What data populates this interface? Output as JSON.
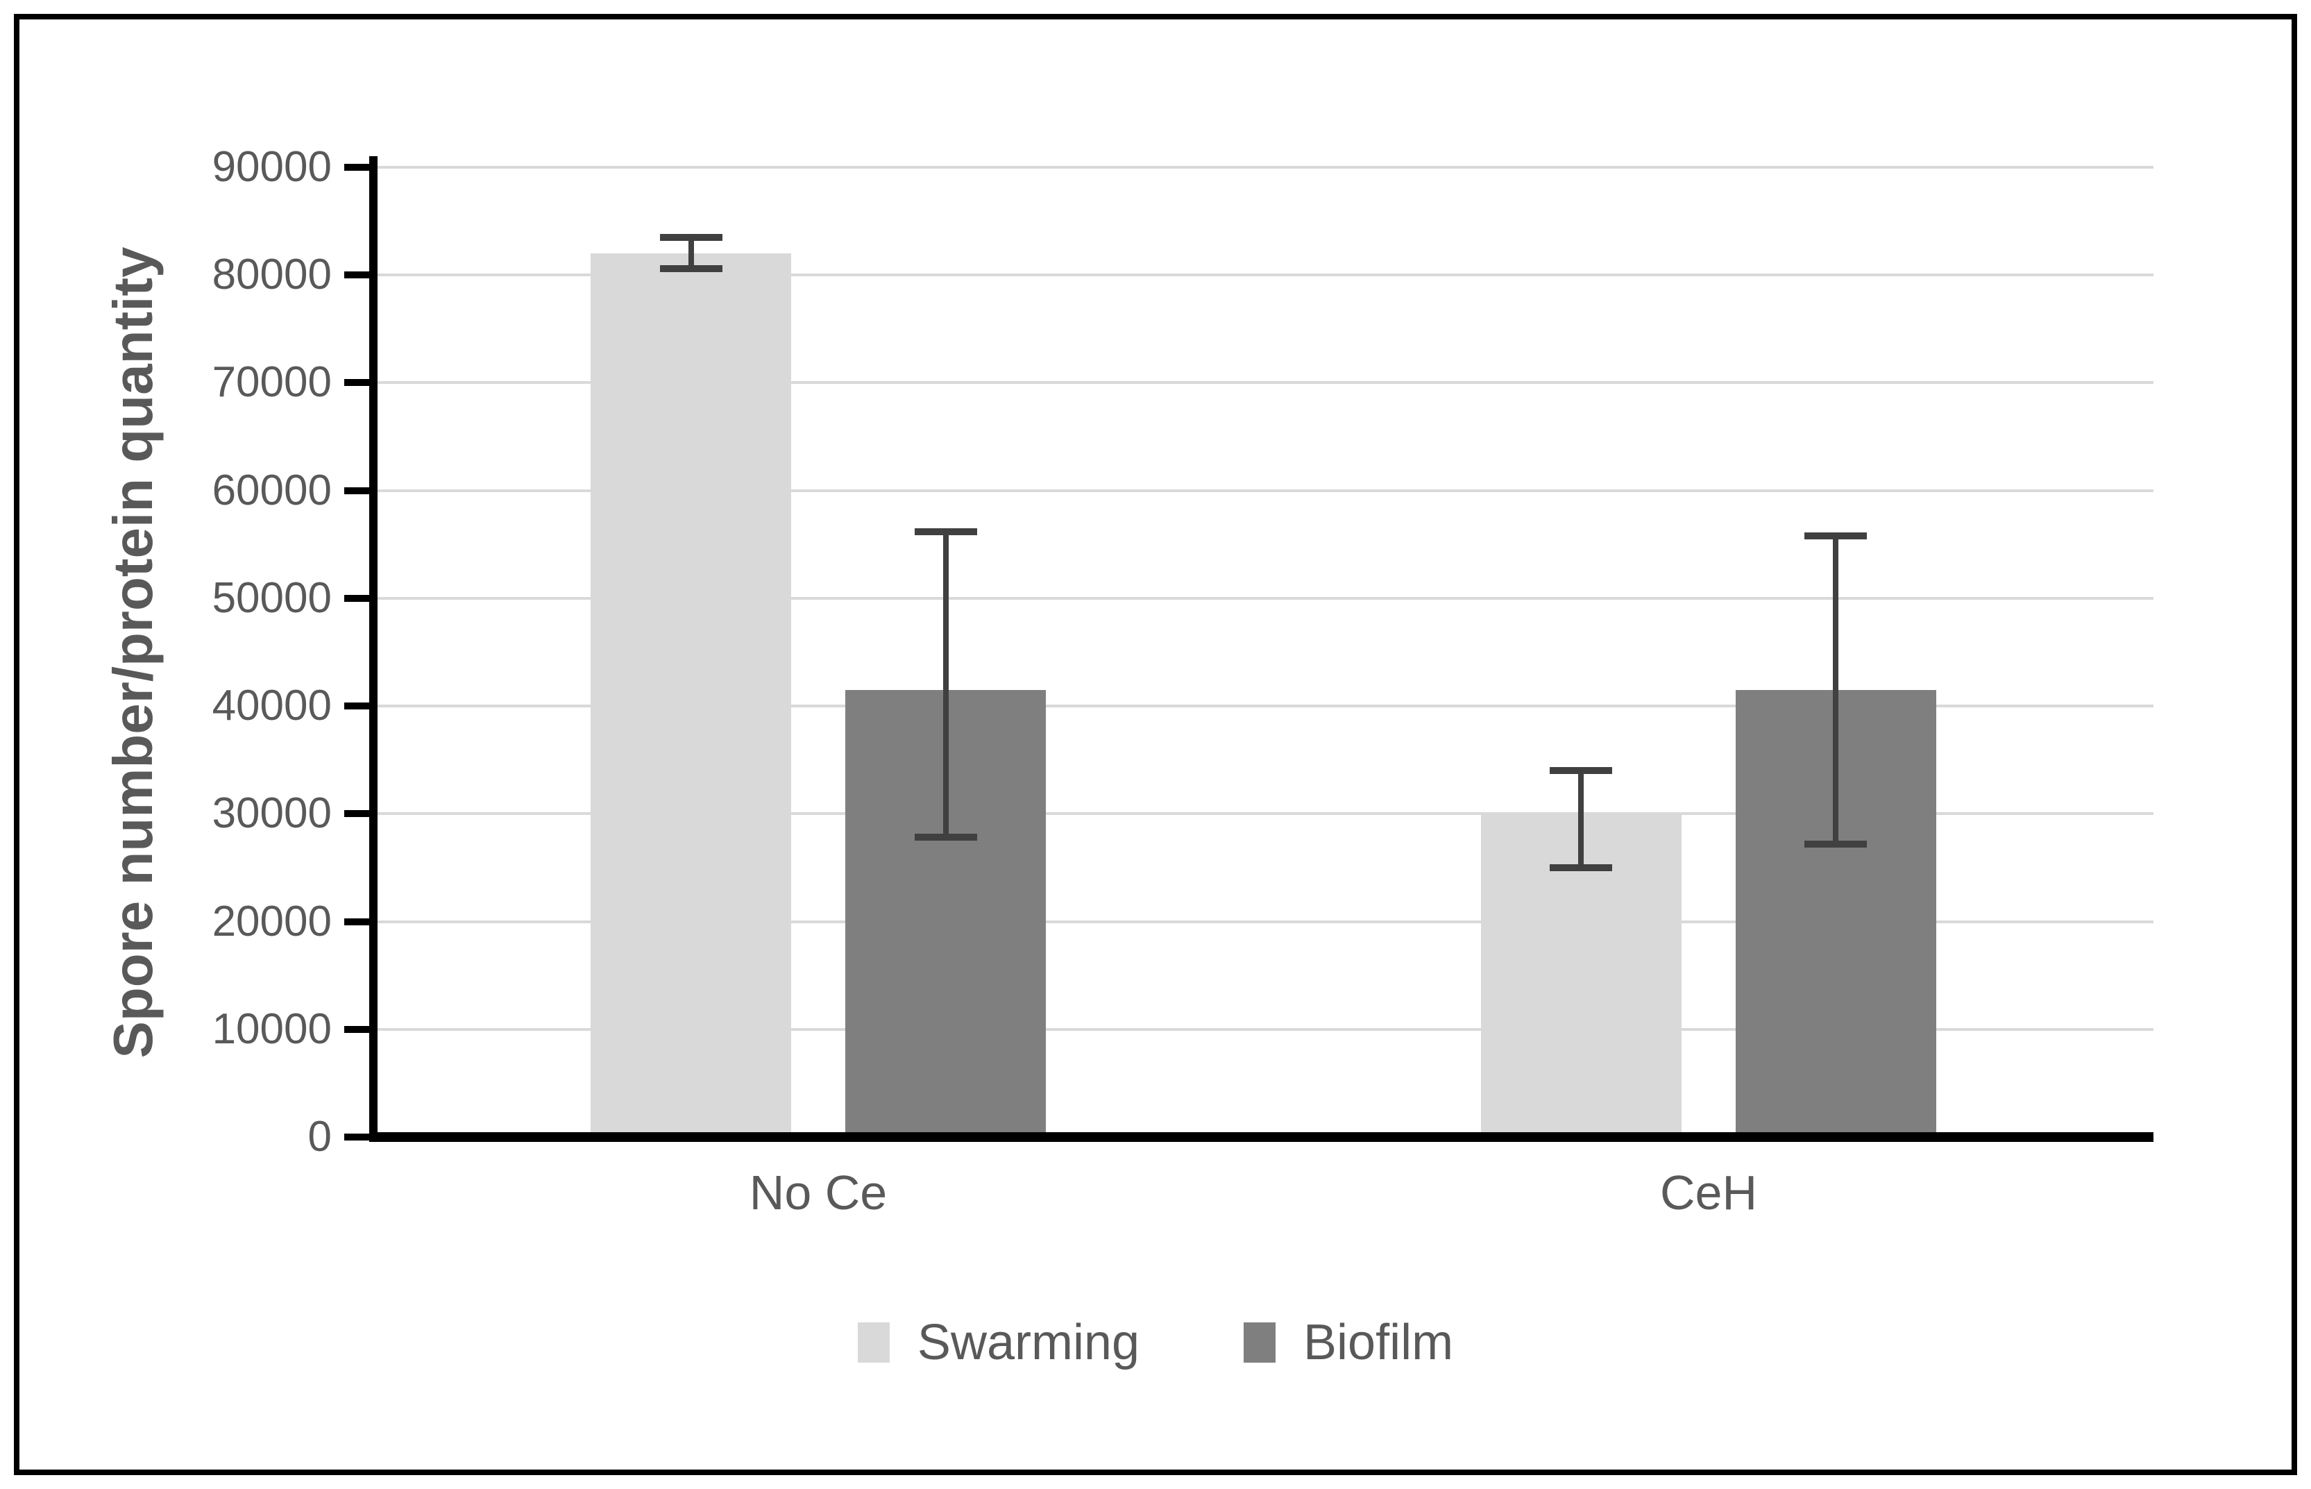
{
  "chart_data": {
    "type": "bar",
    "title": "",
    "xlabel": "",
    "ylabel": "Spore number/protein quantity",
    "categories": [
      "No Ce",
      "CeH"
    ],
    "series": [
      {
        "name": "Swarming",
        "color": "#D9D9D9",
        "values": [
          82000,
          30000
        ],
        "error_upper": [
          83500,
          34000
        ],
        "error_lower": [
          80600,
          25000
        ]
      },
      {
        "name": "Biofilm",
        "color": "#7F7F7F",
        "values": [
          41500,
          41500
        ],
        "error_upper": [
          56200,
          55800
        ],
        "error_lower": [
          27800,
          27200
        ]
      }
    ],
    "ylim": [
      0,
      90000
    ],
    "yticks": [
      0,
      10000,
      20000,
      30000,
      40000,
      50000,
      60000,
      70000,
      80000,
      90000
    ],
    "grid": "horizontal",
    "legend_position": "bottom",
    "colors": {
      "background": "#FFFFFF",
      "frame_border": "#000000",
      "axis_line": "#000000",
      "axis_text": "#595959",
      "gridline": "#D9D9D9",
      "error_bar": "#404040"
    }
  }
}
